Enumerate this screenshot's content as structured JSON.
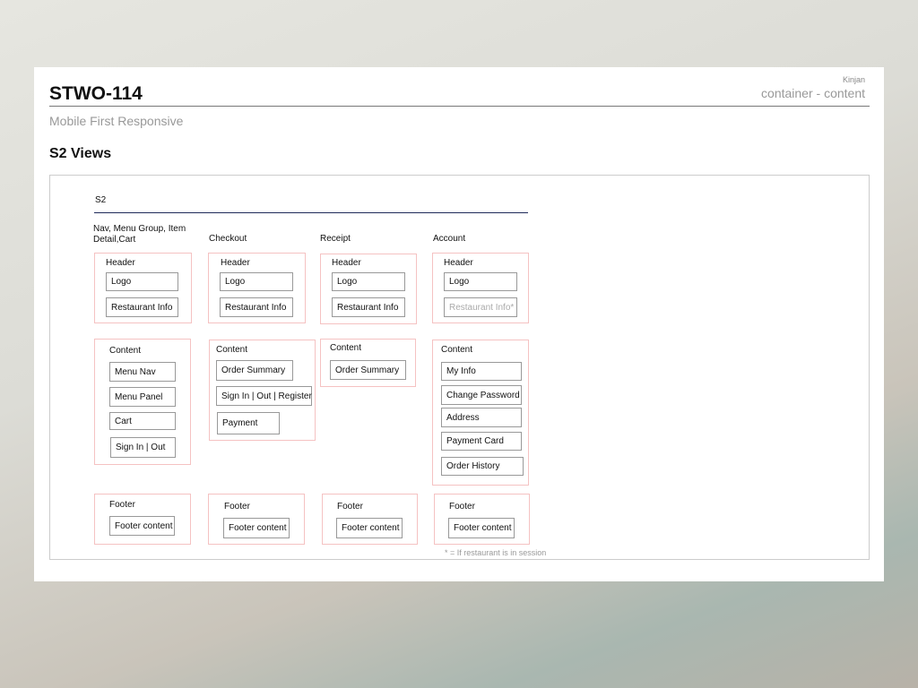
{
  "doc": {
    "title": "STWO-114",
    "author": "Kinjan",
    "label": "container - content",
    "subtitle": "Mobile First Responsive",
    "section_title": "S2 Views"
  },
  "diagram": {
    "name": "S2",
    "footnote": "* = If restaurant is in session",
    "columns": [
      {
        "title": "Nav, Menu Group, Item Detail,Cart",
        "header": {
          "title": "Header",
          "items": [
            "Logo",
            "Restaurant Info"
          ]
        },
        "content": {
          "title": "Content",
          "items": [
            "Menu Nav",
            "Menu Panel",
            "Cart",
            "Sign In | Out"
          ]
        },
        "footer": {
          "title": "Footer",
          "items": [
            "Footer content"
          ]
        }
      },
      {
        "title": "Checkout",
        "header": {
          "title": "Header",
          "items": [
            "Logo",
            "Restaurant Info"
          ]
        },
        "content": {
          "title": "Content",
          "items": [
            "Order Summary",
            "Sign In | Out | Register",
            "Payment"
          ]
        },
        "footer": {
          "title": "Footer",
          "items": [
            "Footer content"
          ]
        }
      },
      {
        "title": "Receipt",
        "header": {
          "title": "Header",
          "items": [
            "Logo",
            "Restaurant Info"
          ]
        },
        "content": {
          "title": "Content",
          "items": [
            "Order Summary"
          ]
        },
        "footer": {
          "title": "Footer",
          "items": [
            "Footer content"
          ]
        }
      },
      {
        "title": "Account",
        "header": {
          "title": "Header",
          "items": [
            "Logo",
            "Restaurant Info*"
          ]
        },
        "content": {
          "title": "Content",
          "items": [
            "My Info",
            "Change Password",
            "Address",
            "Payment Card",
            "Order History"
          ]
        },
        "footer": {
          "title": "Footer",
          "items": [
            "Footer content"
          ]
        }
      }
    ]
  },
  "colors": {
    "box_border": "#f5c2c2",
    "item_border": "#999999",
    "rule": "#1e2a5a",
    "dim_text": "#aaaaaa"
  }
}
